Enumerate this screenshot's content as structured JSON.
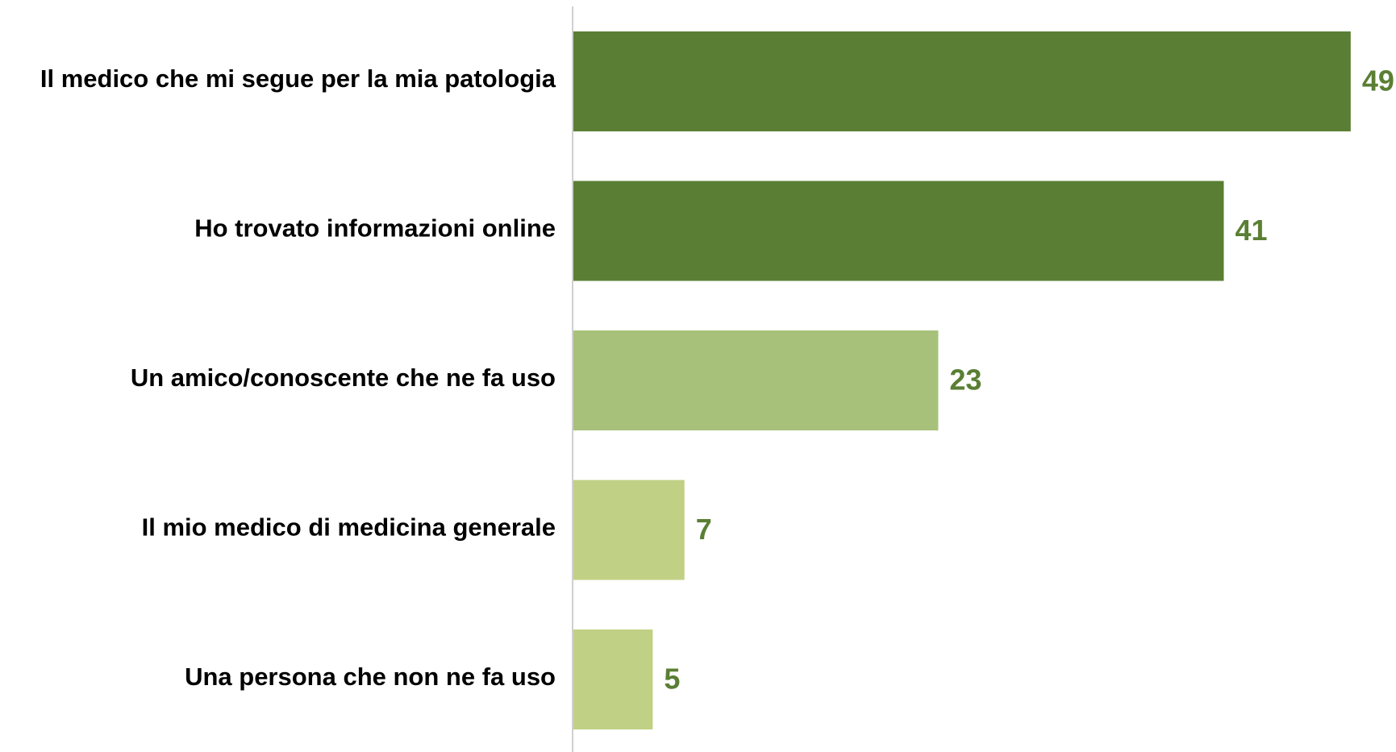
{
  "chart_data": {
    "type": "bar",
    "orientation": "horizontal",
    "categories": [
      "Il medico che mi segue per la mia patologia",
      "Ho trovato informazioni online",
      "Un amico/conoscente che ne fa uso",
      "Il mio medico di medicina generale",
      "Una persona che non ne fa uso"
    ],
    "values": [
      49,
      41,
      23,
      7,
      5
    ],
    "colors": [
      "#5a7f34",
      "#5a7f34",
      "#a7c17a",
      "#c0d084",
      "#c0d084"
    ],
    "label_color": "#5a7f34"
  }
}
